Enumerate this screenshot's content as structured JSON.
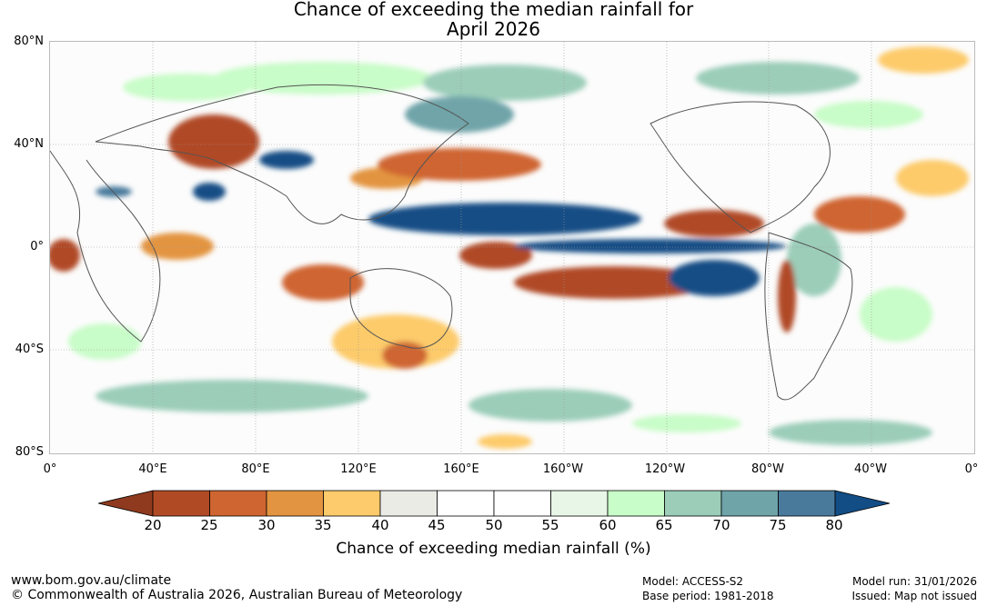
{
  "title": {
    "line1": "Chance of exceeding the median rainfall for",
    "line2": "April 2026"
  },
  "map": {
    "lat_labels": [
      "80°N",
      "40°N",
      "0°",
      "40°S",
      "80°S"
    ],
    "lon_labels": [
      "0°",
      "40°E",
      "80°E",
      "120°E",
      "160°E",
      "160°W",
      "120°W",
      "80°W",
      "40°W",
      "0°"
    ]
  },
  "colorbar": {
    "ticks": [
      "20",
      "25",
      "30",
      "35",
      "40",
      "45",
      "50",
      "55",
      "60",
      "65",
      "70",
      "75",
      "80"
    ],
    "colors": [
      "#8f3a1f",
      "#b04a25",
      "#cf6530",
      "#e39440",
      "#fdcb6b",
      "#ebebe6",
      "#ffffff",
      "#ffffff",
      "#e8f6e8",
      "#c8fcc8",
      "#9bcdb9",
      "#6fa4a9",
      "#497a9c",
      "#124d85"
    ],
    "label": "Chance of exceeding median rainfall (%)"
  },
  "footer": {
    "url": "www.bom.gov.au/climate",
    "copyright": "© Commonwealth of Australia 2026, Australian Bureau of Meteorology",
    "model": "Model: ACCESS-S2",
    "base_period": "Base period: 1981-2018",
    "model_run": "Model run: 31/01/2026",
    "issued": "Issued: Map not issued"
  }
}
